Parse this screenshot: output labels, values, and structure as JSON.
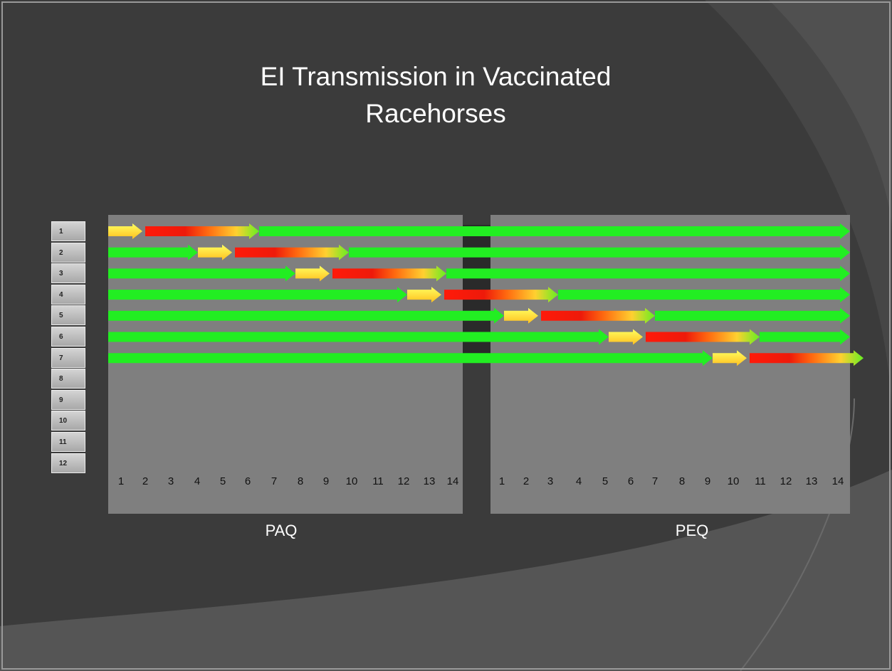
{
  "title": "EI Transmission in Vaccinated Racehorses",
  "rows": [
    "1",
    "2",
    "3",
    "4",
    "5",
    "6",
    "7",
    "8",
    "9",
    "10",
    "11",
    "12"
  ],
  "panels": [
    {
      "label": "PAQ",
      "days": [
        1,
        2,
        3,
        4,
        5,
        6,
        7,
        8,
        9,
        10,
        11,
        12,
        13,
        14
      ]
    },
    {
      "label": "PEQ",
      "days": [
        1,
        2,
        3,
        4,
        5,
        6,
        7,
        8,
        9,
        10,
        11,
        12,
        13,
        14
      ]
    }
  ]
}
